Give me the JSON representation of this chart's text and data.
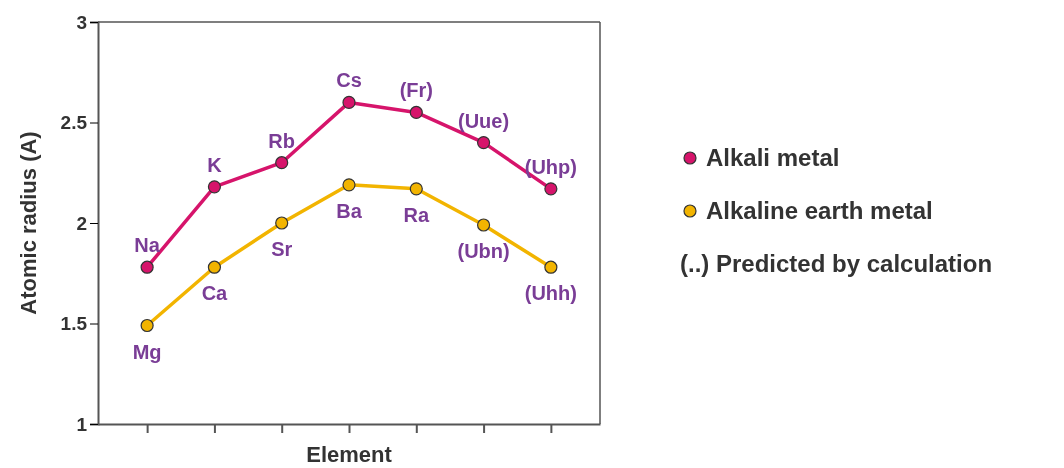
{
  "chart_data": {
    "type": "line",
    "xlabel": "Element",
    "ylabel": "Atomic radius (A)",
    "categories": [
      null,
      null,
      null,
      null,
      null,
      null,
      null
    ],
    "series": [
      {
        "name": "Alkali metal",
        "color": "#d6146b",
        "values": [
          1.78,
          2.18,
          2.3,
          2.6,
          2.55,
          2.4,
          2.17
        ]
      },
      {
        "name": "Alkaline earth metal",
        "color": "#f2b400",
        "values": [
          1.49,
          1.78,
          2.0,
          2.19,
          2.17,
          1.99,
          1.78
        ]
      }
    ],
    "ylim": [
      1,
      3
    ],
    "yticks": [
      1,
      1.5,
      2,
      2.5,
      3
    ],
    "grid": false,
    "legend": "right",
    "marker": "circle",
    "line_style": "solid",
    "annotations": [
      {
        "text": "Na",
        "y": 1.78
      },
      {
        "text": "K",
        "y": 2.18
      },
      {
        "text": "Rb",
        "y": 2.3
      },
      {
        "text": "Cs",
        "y": 2.6
      },
      {
        "text": "(Fr)",
        "y": 2.55
      },
      {
        "text": "(Uue)",
        "y": 2.4
      },
      {
        "text": "(Uhp)",
        "y": 2.17
      },
      {
        "text": "Mg",
        "y": 1.49
      },
      {
        "text": "Ca",
        "y": 1.78
      },
      {
        "text": "Sr",
        "y": 2.0
      },
      {
        "text": "Ba",
        "y": 2.19
      },
      {
        "text": "Ra",
        "y": 2.17
      },
      {
        "text": "(Ubn)",
        "y": 1.99
      },
      {
        "text": "(Uhh)",
        "y": 1.78
      },
      "(..) Predicted by calculation"
    ]
  }
}
